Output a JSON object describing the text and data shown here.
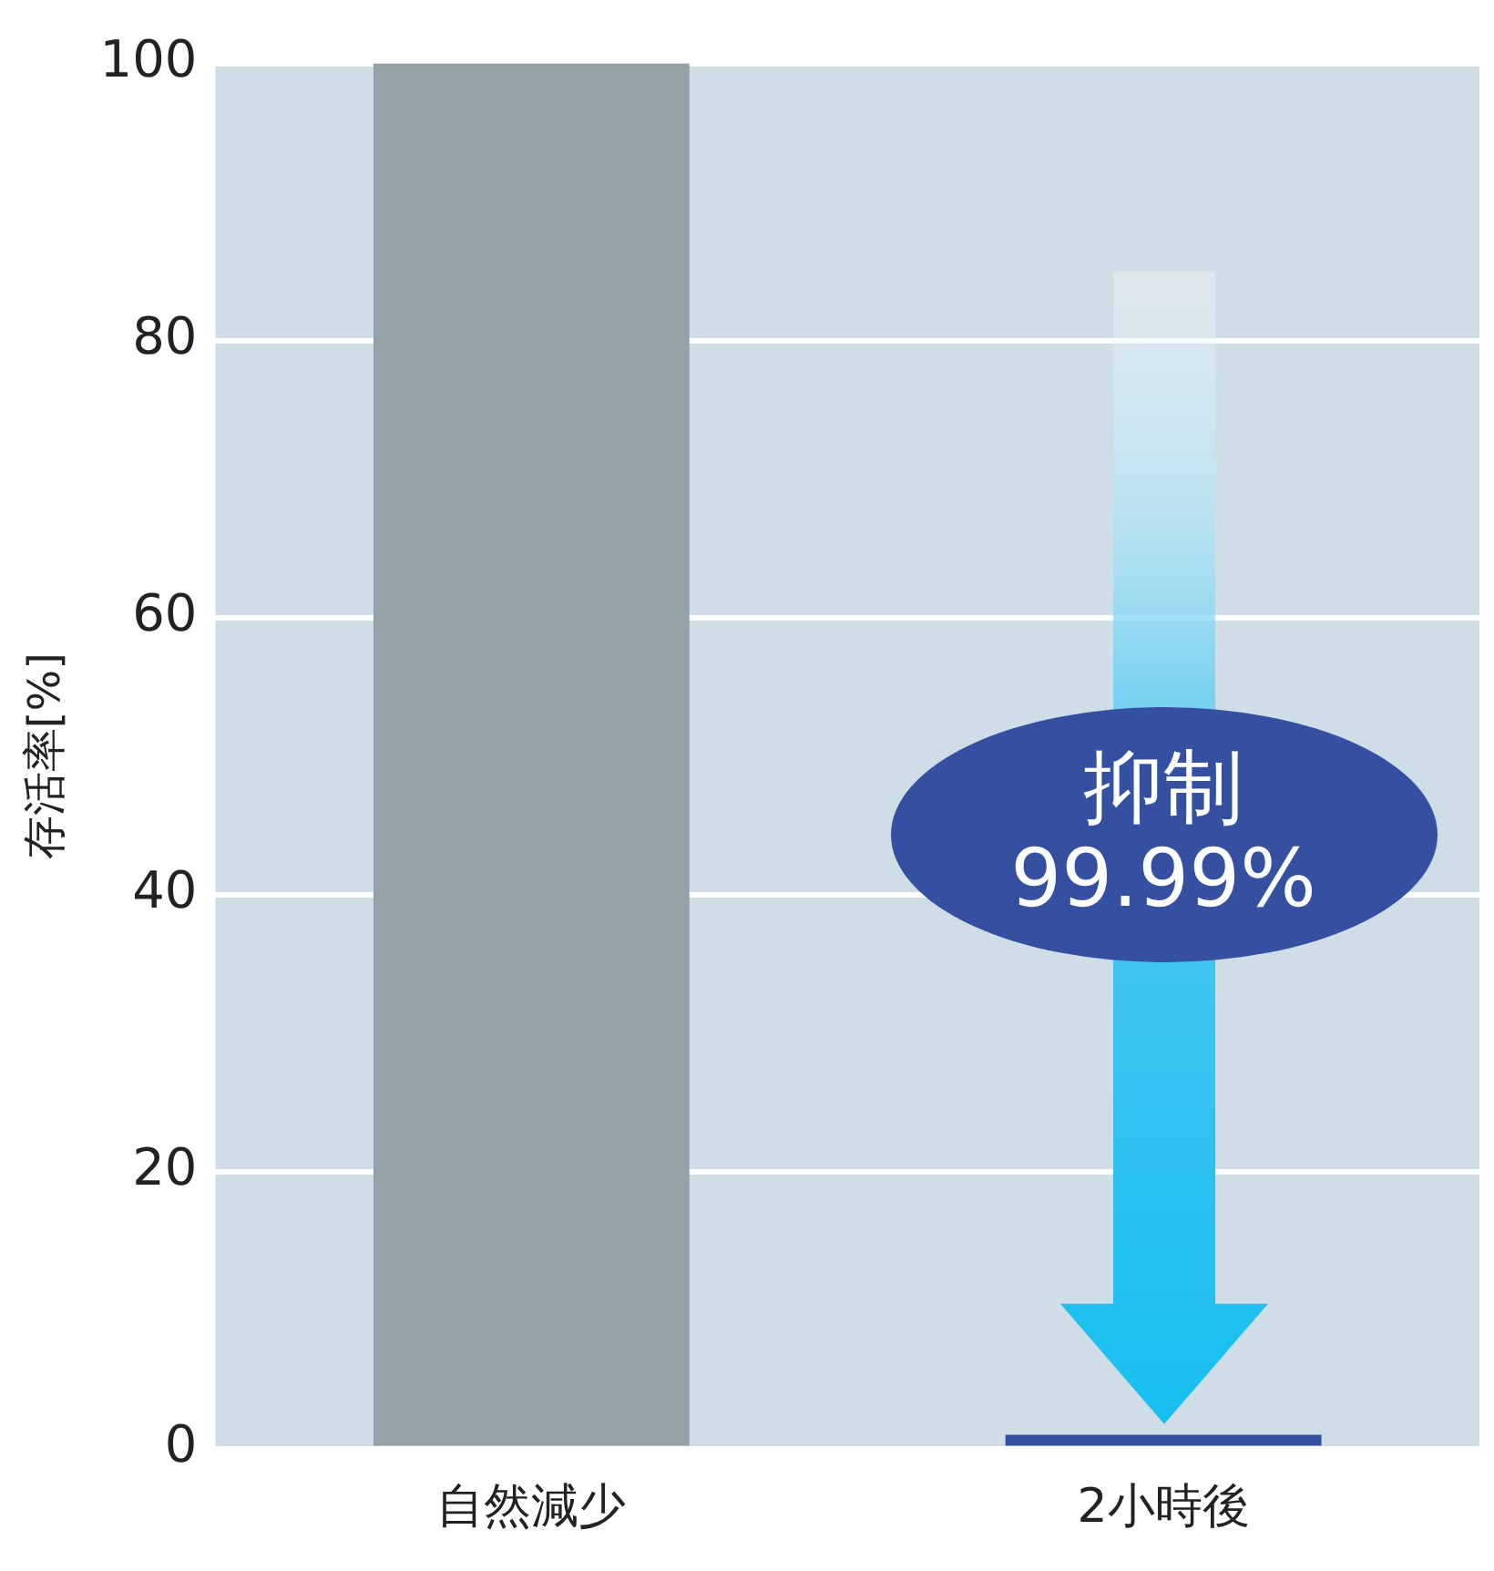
{
  "chart_data": {
    "type": "bar",
    "categories": [
      "自然減少",
      "2小時後"
    ],
    "values": [
      100,
      1
    ],
    "colors": [
      "#95a1a9",
      "#3550a0"
    ],
    "ylabel": "存活率[%]",
    "ylim": [
      0,
      100
    ],
    "yticks": [
      0,
      20,
      40,
      60,
      80,
      100
    ],
    "grid": "y",
    "legend": false,
    "annotations": [
      "抑制 99.99%"
    ]
  }
}
